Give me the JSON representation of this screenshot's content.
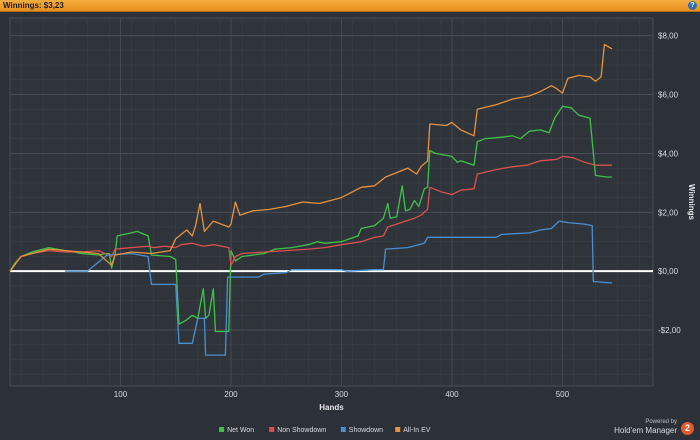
{
  "window": {
    "title": "Winnings: $3,23",
    "help_icon": "help-icon",
    "help_glyph": "?",
    "accent": "#f2a13a"
  },
  "branding": {
    "powered_by": "Powered by",
    "product": "Hold'em Manager",
    "badge": "2"
  },
  "chart_data": {
    "type": "line",
    "title": "",
    "xlabel": "Hands",
    "ylabel": "Winnings",
    "xlim": [
      0,
      582
    ],
    "ylim": [
      -3.9,
      8.6
    ],
    "x_ticks": [
      100,
      200,
      300,
      400,
      500
    ],
    "x_tick_labels": [
      "100",
      "200",
      "300",
      "400",
      "500"
    ],
    "y_ticks": [
      8,
      6,
      4,
      2,
      0,
      -2
    ],
    "y_tick_labels": [
      "$8,00",
      "$6,00",
      "$4,00",
      "$2,00",
      "$0,00",
      "-$2,00"
    ],
    "zero_line": true,
    "grid": true,
    "legend_position": "bottom-center",
    "series": [
      {
        "name": "Net Won",
        "color": "#3fc24a",
        "points": [
          [
            0,
            0
          ],
          [
            4,
            0.25
          ],
          [
            10,
            0.5
          ],
          [
            20,
            0.65
          ],
          [
            35,
            0.8
          ],
          [
            50,
            0.7
          ],
          [
            65,
            0.6
          ],
          [
            80,
            0.55
          ],
          [
            88,
            0.6
          ],
          [
            90,
            0.6
          ],
          [
            92,
            0.1
          ],
          [
            95,
            0.55
          ],
          [
            97,
            1.2
          ],
          [
            110,
            1.3
          ],
          [
            115,
            1.35
          ],
          [
            125,
            1.2
          ],
          [
            128,
            0.55
          ],
          [
            145,
            0.5
          ],
          [
            150,
            0.4
          ],
          [
            153,
            -1.8
          ],
          [
            160,
            -1.65
          ],
          [
            165,
            -1.5
          ],
          [
            170,
            -1.6
          ],
          [
            175,
            -0.6
          ],
          [
            177,
            -1.6
          ],
          [
            180,
            -1.5
          ],
          [
            184,
            -0.6
          ],
          [
            186,
            -2.05
          ],
          [
            198,
            -2.05
          ],
          [
            200,
            0.7
          ],
          [
            204,
            0.35
          ],
          [
            210,
            0.5
          ],
          [
            230,
            0.6
          ],
          [
            240,
            0.75
          ],
          [
            255,
            0.8
          ],
          [
            270,
            0.9
          ],
          [
            278,
            1.0
          ],
          [
            285,
            0.95
          ],
          [
            300,
            1.0
          ],
          [
            315,
            1.2
          ],
          [
            318,
            1.45
          ],
          [
            330,
            1.55
          ],
          [
            338,
            1.8
          ],
          [
            342,
            2.3
          ],
          [
            344,
            1.8
          ],
          [
            350,
            1.85
          ],
          [
            355,
            2.9
          ],
          [
            358,
            2.05
          ],
          [
            362,
            2.1
          ],
          [
            366,
            2.4
          ],
          [
            370,
            2.2
          ],
          [
            375,
            2.8
          ],
          [
            378,
            2.85
          ],
          [
            380,
            4.1
          ],
          [
            385,
            4.0
          ],
          [
            400,
            3.9
          ],
          [
            405,
            3.7
          ],
          [
            408,
            3.75
          ],
          [
            420,
            3.6
          ],
          [
            423,
            4.4
          ],
          [
            430,
            4.5
          ],
          [
            445,
            4.55
          ],
          [
            455,
            4.6
          ],
          [
            462,
            4.5
          ],
          [
            470,
            4.75
          ],
          [
            480,
            4.8
          ],
          [
            488,
            4.7
          ],
          [
            493,
            5.2
          ],
          [
            500,
            5.6
          ],
          [
            508,
            5.55
          ],
          [
            512,
            5.4
          ],
          [
            515,
            5.3
          ],
          [
            525,
            5.2
          ],
          [
            530,
            3.25
          ],
          [
            540,
            3.2
          ],
          [
            545,
            3.2
          ]
        ]
      },
      {
        "name": "Non Showdown",
        "color": "#d9514e",
        "points": [
          [
            0,
            0
          ],
          [
            10,
            0.5
          ],
          [
            20,
            0.6
          ],
          [
            35,
            0.7
          ],
          [
            50,
            0.65
          ],
          [
            65,
            0.65
          ],
          [
            80,
            0.7
          ],
          [
            92,
            0.5
          ],
          [
            95,
            0.75
          ],
          [
            110,
            0.8
          ],
          [
            125,
            0.85
          ],
          [
            130,
            0.8
          ],
          [
            140,
            0.85
          ],
          [
            150,
            0.8
          ],
          [
            155,
            0.9
          ],
          [
            165,
            0.95
          ],
          [
            175,
            0.85
          ],
          [
            185,
            0.9
          ],
          [
            198,
            0.8
          ],
          [
            200,
            0.2
          ],
          [
            204,
            0.5
          ],
          [
            210,
            0.6
          ],
          [
            230,
            0.65
          ],
          [
            250,
            0.7
          ],
          [
            270,
            0.75
          ],
          [
            285,
            0.8
          ],
          [
            300,
            0.9
          ],
          [
            318,
            1.0
          ],
          [
            330,
            1.15
          ],
          [
            338,
            1.2
          ],
          [
            342,
            1.5
          ],
          [
            350,
            1.6
          ],
          [
            358,
            1.7
          ],
          [
            366,
            1.8
          ],
          [
            372,
            1.9
          ],
          [
            378,
            2.1
          ],
          [
            380,
            2.85
          ],
          [
            390,
            2.7
          ],
          [
            400,
            2.6
          ],
          [
            408,
            2.75
          ],
          [
            420,
            2.8
          ],
          [
            423,
            3.3
          ],
          [
            440,
            3.45
          ],
          [
            455,
            3.55
          ],
          [
            468,
            3.6
          ],
          [
            480,
            3.75
          ],
          [
            495,
            3.8
          ],
          [
            500,
            3.9
          ],
          [
            510,
            3.85
          ],
          [
            520,
            3.7
          ],
          [
            530,
            3.6
          ],
          [
            545,
            3.6
          ]
        ]
      },
      {
        "name": "Showdown",
        "color": "#4a8fd0",
        "points": [
          [
            50,
            0
          ],
          [
            70,
            0
          ],
          [
            88,
            0.55
          ],
          [
            110,
            0.6
          ],
          [
            125,
            0.5
          ],
          [
            128,
            -0.45
          ],
          [
            150,
            -0.45
          ],
          [
            153,
            -2.45
          ],
          [
            165,
            -2.45
          ],
          [
            170,
            -1.6
          ],
          [
            176,
            -1.6
          ],
          [
            177,
            -2.85
          ],
          [
            195,
            -2.85
          ],
          [
            197,
            -0.2
          ],
          [
            225,
            -0.2
          ],
          [
            230,
            -0.1
          ],
          [
            250,
            -0.05
          ],
          [
            255,
            0.05
          ],
          [
            300,
            0.05
          ],
          [
            305,
            0.0
          ],
          [
            330,
            0.05
          ],
          [
            338,
            0.05
          ],
          [
            340,
            0.75
          ],
          [
            360,
            0.8
          ],
          [
            375,
            0.95
          ],
          [
            378,
            1.15
          ],
          [
            440,
            1.15
          ],
          [
            445,
            1.25
          ],
          [
            470,
            1.3
          ],
          [
            480,
            1.4
          ],
          [
            490,
            1.45
          ],
          [
            497,
            1.7
          ],
          [
            505,
            1.65
          ],
          [
            520,
            1.6
          ],
          [
            527,
            1.55
          ],
          [
            528,
            -0.35
          ],
          [
            545,
            -0.4
          ]
        ]
      },
      {
        "name": "All-In EV",
        "color": "#e8913e",
        "points": [
          [
            0,
            0
          ],
          [
            10,
            0.5
          ],
          [
            20,
            0.6
          ],
          [
            35,
            0.75
          ],
          [
            50,
            0.7
          ],
          [
            65,
            0.65
          ],
          [
            80,
            0.6
          ],
          [
            92,
            0.2
          ],
          [
            95,
            0.55
          ],
          [
            110,
            0.65
          ],
          [
            128,
            0.6
          ],
          [
            145,
            0.7
          ],
          [
            150,
            1.1
          ],
          [
            160,
            1.4
          ],
          [
            165,
            1.2
          ],
          [
            168,
            1.55
          ],
          [
            172,
            2.3
          ],
          [
            176,
            1.35
          ],
          [
            184,
            1.7
          ],
          [
            198,
            1.5
          ],
          [
            200,
            1.6
          ],
          [
            204,
            2.35
          ],
          [
            208,
            1.9
          ],
          [
            220,
            2.05
          ],
          [
            235,
            2.1
          ],
          [
            250,
            2.2
          ],
          [
            265,
            2.35
          ],
          [
            280,
            2.3
          ],
          [
            300,
            2.5
          ],
          [
            318,
            2.85
          ],
          [
            330,
            2.9
          ],
          [
            340,
            3.2
          ],
          [
            350,
            3.35
          ],
          [
            360,
            3.5
          ],
          [
            368,
            3.3
          ],
          [
            372,
            3.55
          ],
          [
            378,
            3.75
          ],
          [
            380,
            5.0
          ],
          [
            395,
            4.95
          ],
          [
            400,
            5.05
          ],
          [
            408,
            4.8
          ],
          [
            420,
            4.6
          ],
          [
            423,
            5.5
          ],
          [
            440,
            5.65
          ],
          [
            455,
            5.85
          ],
          [
            470,
            5.95
          ],
          [
            480,
            6.1
          ],
          [
            490,
            6.3
          ],
          [
            495,
            6.2
          ],
          [
            500,
            6.05
          ],
          [
            505,
            6.55
          ],
          [
            515,
            6.65
          ],
          [
            525,
            6.6
          ],
          [
            530,
            6.45
          ],
          [
            535,
            6.6
          ],
          [
            538,
            7.7
          ],
          [
            545,
            7.55
          ]
        ]
      }
    ]
  }
}
